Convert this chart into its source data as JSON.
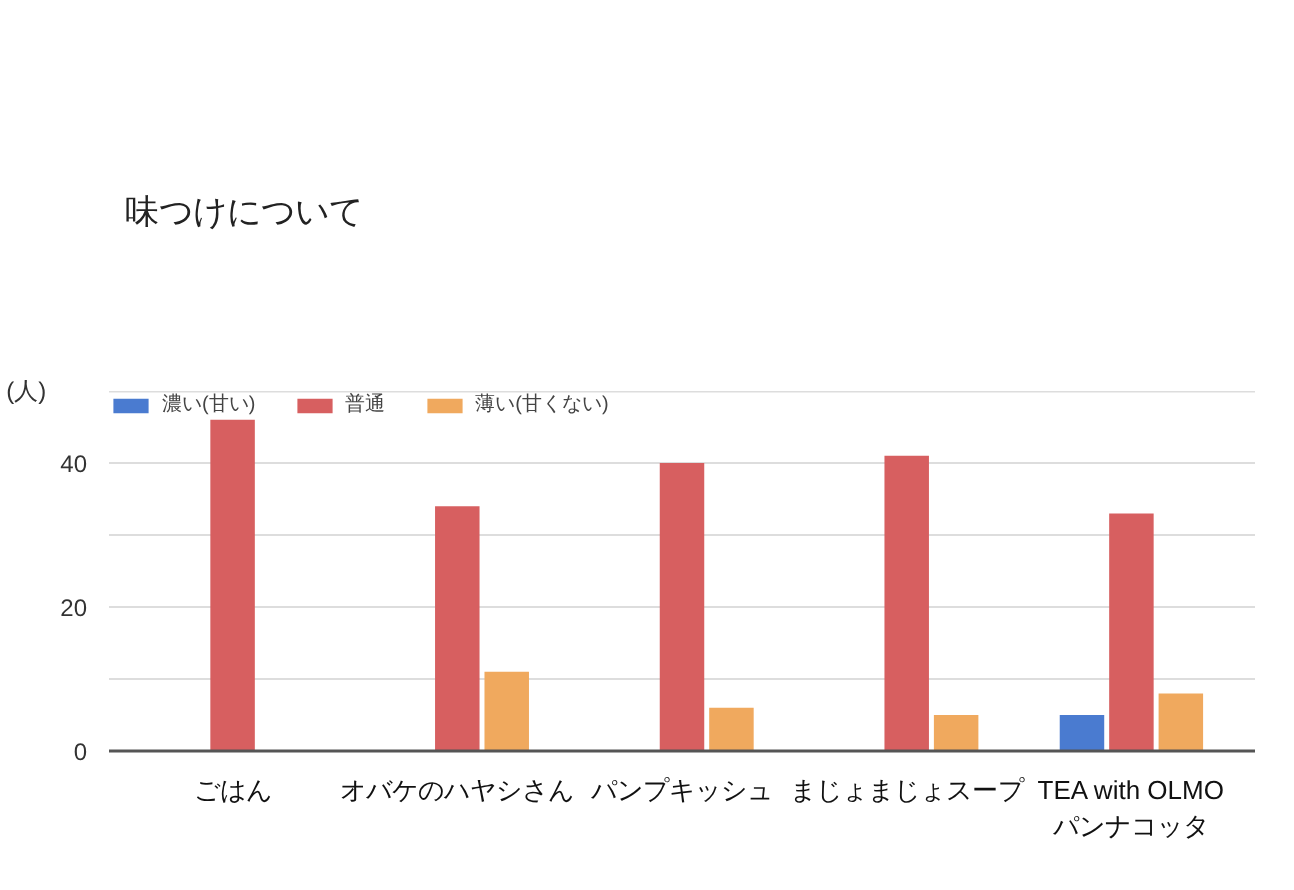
{
  "chart_data": {
    "type": "bar",
    "title": "味つけについて",
    "ylabel": "(人)",
    "categories": [
      "ごはん",
      "オバケのハヤシさん",
      "パンプキッシュ",
      "まじょまじょスープ",
      "TEA with OLMO\nパンナコッタ"
    ],
    "series": [
      {
        "name": "濃い(甘い)",
        "color": "#4a7bd0",
        "values": [
          0,
          0,
          0,
          0,
          5
        ]
      },
      {
        "name": "普通",
        "color": "#d75f60",
        "values": [
          46,
          34,
          40,
          41,
          33
        ]
      },
      {
        "name": "薄い(甘くない)",
        "color": "#f0a95e",
        "values": [
          0,
          11,
          6,
          5,
          8
        ]
      }
    ],
    "ylim": [
      0,
      50
    ],
    "yticks": [
      0,
      {
        "value": 10,
        "label": null
      },
      20,
      {
        "value": 30,
        "label": null
      },
      40,
      {
        "value": 50,
        "label": null
      }
    ],
    "grid": "y",
    "legend": "top left"
  }
}
